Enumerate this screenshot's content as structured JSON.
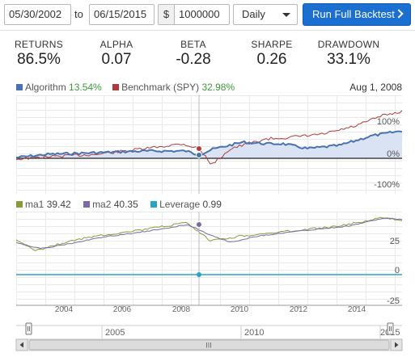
{
  "controls": {
    "start_date": "05/30/2002",
    "to_label": "to",
    "end_date": "06/15/2015",
    "currency_symbol": "$",
    "capital": "1000000",
    "frequency": "Daily",
    "run_label": "Run Full Backtest"
  },
  "stats": [
    {
      "label": "RETURNS",
      "value": "86.5%"
    },
    {
      "label": "ALPHA",
      "value": "0.07"
    },
    {
      "label": "BETA",
      "value": "-0.28"
    },
    {
      "label": "SHARPE",
      "value": "0.26"
    },
    {
      "label": "DRAWDOWN",
      "value": "33.1%"
    }
  ],
  "top_chart": {
    "date": "Aug 1, 2008",
    "algorithm_label": "Algorithm",
    "algorithm_value": "13.54%",
    "benchmark_label": "Benchmark (SPY)",
    "benchmark_value": "32.98%",
    "y_ticks": [
      "100%",
      "0%",
      "-100%"
    ],
    "colors": {
      "algorithm": "#4a72b0",
      "benchmark": "#b03a3a",
      "area": "#d9e3f3"
    }
  },
  "bottom_chart": {
    "ma1_label": "ma1",
    "ma1_value": "39.42",
    "ma2_label": "ma2",
    "ma2_value": "40.35",
    "leverage_label": "Leverage",
    "leverage_value": "0.99",
    "y_ticks": [
      "25",
      "0",
      "-25"
    ],
    "colors": {
      "ma1": "#8a9a3a",
      "ma2": "#7b6aa6",
      "leverage": "#29a3c8"
    }
  },
  "x_axis_ticks": [
    "2004",
    "2006",
    "2008",
    "2010",
    "2012",
    "2014"
  ],
  "navigator": {
    "ticks": [
      "2005",
      "2010",
      "2015"
    ],
    "scroll_grip": "III"
  }
}
